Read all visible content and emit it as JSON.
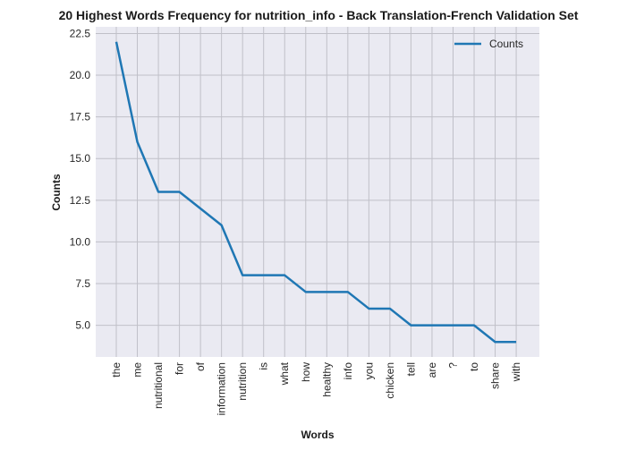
{
  "chart_data": {
    "type": "line",
    "title": "20 Highest Words Frequency for nutrition_info - Back Translation-French Validation Set",
    "xlabel": "Words",
    "ylabel": "Counts",
    "categories": [
      "the",
      "me",
      "nutritional",
      "for",
      "of",
      "information",
      "nutrition",
      "is",
      "what",
      "how",
      "healthy",
      "info",
      "you",
      "chicken",
      "tell",
      "are",
      "?",
      "to",
      "share",
      "with"
    ],
    "series": [
      {
        "name": "Counts",
        "color": "#1f77b4",
        "values": [
          22,
          16,
          13,
          13,
          12,
          11,
          8,
          8,
          8,
          7,
          7,
          7,
          6,
          6,
          5,
          5,
          5,
          5,
          4,
          4
        ]
      }
    ],
    "yticks": [
      5.0,
      7.5,
      10.0,
      12.5,
      15.0,
      17.5,
      20.0,
      22.5
    ],
    "ytick_labels": [
      "5.0",
      "7.5",
      "10.0",
      "12.5",
      "15.0",
      "17.5",
      "20.0",
      "22.5"
    ],
    "ylim": [
      3.1,
      22.9
    ],
    "grid": true,
    "legend_position": "top-right",
    "colors": {
      "plot_background": "#eaeaf2",
      "grid": "#c0c0c8",
      "line": "#1f77b4"
    }
  }
}
